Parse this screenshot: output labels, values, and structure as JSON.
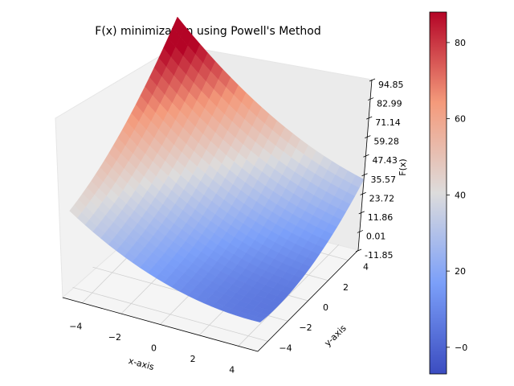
{
  "chart_data": {
    "type": "surface",
    "title": "F(x) minimization using Powell's Method",
    "xlabel": "x-axis",
    "ylabel": "y-axis",
    "zlabel": "F(x)",
    "colormap": "coolwarm",
    "x_ticks": [
      "−4",
      "−2",
      "0",
      "2",
      "4"
    ],
    "y_ticks": [
      "−4",
      "−2",
      "0",
      "2",
      "4"
    ],
    "z_ticks": [
      "-11.85",
      "0.01",
      "11.86",
      "23.72",
      "35.57",
      "47.43",
      "59.28",
      "71.14",
      "82.99",
      "94.85"
    ],
    "xlim": [
      -5,
      5
    ],
    "ylim": [
      -5,
      5
    ],
    "zlim": [
      -11.85,
      94.85
    ],
    "surface": {
      "x": [
        -5,
        -4,
        -3,
        -2,
        -1,
        0,
        1,
        2,
        3,
        4,
        5
      ],
      "y": [
        -5,
        -4,
        -3,
        -2,
        -1,
        0,
        1,
        2,
        3,
        4,
        5
      ],
      "z_corners": {
        "x_min_y_min": 30,
        "x_min_y_max": 88,
        "x_max_y_min": 2,
        "x_max_y_max": 28
      },
      "z_min": -5
    },
    "colorbar": {
      "ticks": [
        "−0",
        "20",
        "40",
        "60",
        "80"
      ],
      "range": [
        -7,
        88
      ]
    },
    "grid": true
  }
}
